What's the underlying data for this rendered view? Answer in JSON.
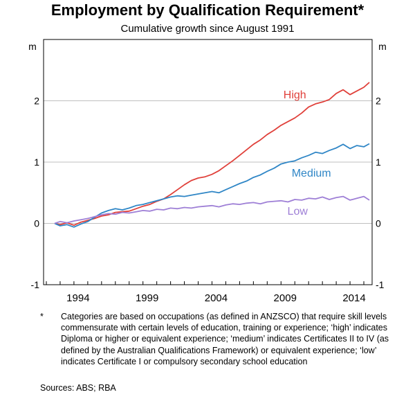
{
  "title": "Employment by Qualification Requirement*",
  "subtitle": "Cumulative growth since August 1991",
  "footnote": {
    "marker": "*",
    "text": "Categories are based on occupations (as defined in ANZSCO) that require skill levels commensurate with certain levels of education, training or experience; ‘high’ indicates Diploma or higher or equivalent experience; ‘medium’ indicates Certificates II to IV (as defined by the Australian Qualifications Framework) or equivalent experience; ‘low’ indicates Certificate I or compulsory secondary school education"
  },
  "sources": "Sources:  ABS; RBA",
  "chart_data": {
    "type": "line",
    "title": "Employment by Qualification Requirement*",
    "subtitle": "Cumulative growth since August 1991",
    "unit_left": "m",
    "unit_right": "m",
    "xlim": [
      1990.8,
      2014.6
    ],
    "ylim": [
      -1,
      3
    ],
    "y_ticks": [
      -1,
      0,
      1,
      2
    ],
    "x_tick_labels": [
      "1994",
      "1999",
      "2004",
      "2009",
      "2014"
    ],
    "x_tick_values": [
      1994,
      1999,
      2004,
      2009,
      2014
    ],
    "grid": true,
    "series": [
      {
        "name": "High",
        "color": "#e0403a",
        "x": [
          1991.6,
          1992.0,
          1992.5,
          1993.0,
          1993.5,
          1994.0,
          1994.5,
          1995.0,
          1995.5,
          1996.0,
          1996.5,
          1997.0,
          1997.5,
          1998.0,
          1998.5,
          1999.0,
          1999.5,
          2000.0,
          2000.5,
          2001.0,
          2001.5,
          2002.0,
          2002.5,
          2003.0,
          2003.5,
          2004.0,
          2004.5,
          2005.0,
          2005.5,
          2006.0,
          2006.5,
          2007.0,
          2007.5,
          2008.0,
          2008.5,
          2009.0,
          2009.5,
          2010.0,
          2010.5,
          2011.0,
          2011.5,
          2012.0,
          2012.5,
          2013.0,
          2013.5,
          2014.0,
          2014.4
        ],
        "values": [
          0.0,
          -0.02,
          0.01,
          -0.03,
          0.02,
          0.05,
          0.08,
          0.12,
          0.14,
          0.18,
          0.19,
          0.2,
          0.24,
          0.28,
          0.31,
          0.36,
          0.4,
          0.47,
          0.55,
          0.63,
          0.7,
          0.74,
          0.76,
          0.8,
          0.86,
          0.94,
          1.02,
          1.11,
          1.2,
          1.29,
          1.36,
          1.45,
          1.52,
          1.6,
          1.66,
          1.72,
          1.8,
          1.9,
          1.95,
          1.98,
          2.02,
          2.12,
          2.18,
          2.1,
          2.16,
          2.22,
          2.3
        ]
      },
      {
        "name": "Medium",
        "color": "#2f86c6",
        "x": [
          1991.6,
          1992.0,
          1992.5,
          1993.0,
          1993.5,
          1994.0,
          1994.5,
          1995.0,
          1995.5,
          1996.0,
          1996.5,
          1997.0,
          1997.5,
          1998.0,
          1998.5,
          1999.0,
          1999.5,
          2000.0,
          2000.5,
          2001.0,
          2001.5,
          2002.0,
          2002.5,
          2003.0,
          2003.5,
          2004.0,
          2004.5,
          2005.0,
          2005.5,
          2006.0,
          2006.5,
          2007.0,
          2007.5,
          2008.0,
          2008.5,
          2009.0,
          2009.5,
          2010.0,
          2010.5,
          2011.0,
          2011.5,
          2012.0,
          2012.5,
          2013.0,
          2013.5,
          2014.0,
          2014.4
        ],
        "values": [
          0.0,
          -0.04,
          -0.02,
          -0.06,
          -0.01,
          0.03,
          0.1,
          0.17,
          0.21,
          0.24,
          0.22,
          0.25,
          0.29,
          0.31,
          0.34,
          0.37,
          0.4,
          0.43,
          0.45,
          0.44,
          0.46,
          0.48,
          0.5,
          0.52,
          0.5,
          0.55,
          0.6,
          0.65,
          0.69,
          0.75,
          0.79,
          0.85,
          0.9,
          0.97,
          1.0,
          1.02,
          1.07,
          1.11,
          1.16,
          1.14,
          1.19,
          1.23,
          1.29,
          1.22,
          1.27,
          1.25,
          1.3
        ]
      },
      {
        "name": "Low",
        "color": "#9e7fd6",
        "x": [
          1991.6,
          1992.0,
          1992.5,
          1993.0,
          1993.5,
          1994.0,
          1994.5,
          1995.0,
          1995.5,
          1996.0,
          1996.5,
          1997.0,
          1997.5,
          1998.0,
          1998.5,
          1999.0,
          1999.5,
          2000.0,
          2000.5,
          2001.0,
          2001.5,
          2002.0,
          2002.5,
          2003.0,
          2003.5,
          2004.0,
          2004.5,
          2005.0,
          2005.5,
          2006.0,
          2006.5,
          2007.0,
          2007.5,
          2008.0,
          2008.5,
          2009.0,
          2009.5,
          2010.0,
          2010.5,
          2011.0,
          2011.5,
          2012.0,
          2012.5,
          2013.0,
          2013.5,
          2014.0,
          2014.4
        ],
        "values": [
          0.0,
          0.03,
          0.01,
          0.04,
          0.06,
          0.08,
          0.11,
          0.14,
          0.16,
          0.15,
          0.18,
          0.17,
          0.19,
          0.21,
          0.2,
          0.23,
          0.22,
          0.25,
          0.24,
          0.26,
          0.25,
          0.27,
          0.28,
          0.29,
          0.27,
          0.3,
          0.32,
          0.31,
          0.33,
          0.34,
          0.32,
          0.35,
          0.36,
          0.37,
          0.35,
          0.39,
          0.38,
          0.41,
          0.4,
          0.43,
          0.39,
          0.42,
          0.44,
          0.38,
          0.41,
          0.44,
          0.38
        ]
      }
    ]
  }
}
